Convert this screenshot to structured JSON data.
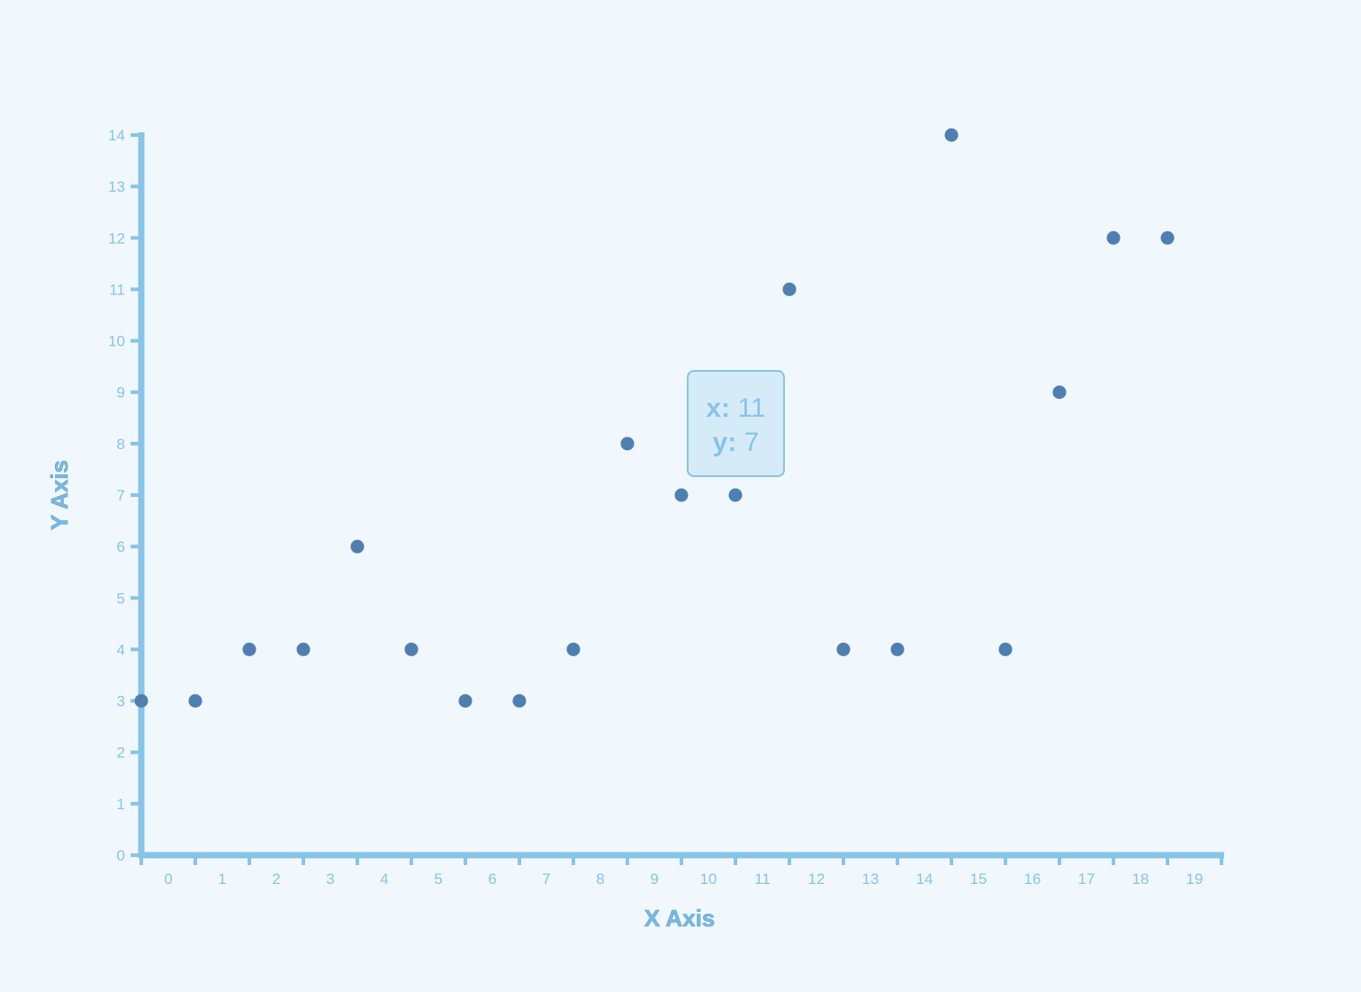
{
  "chart_data": {
    "type": "scatter",
    "title": "",
    "xlabel": "X Axis",
    "ylabel": "Y Axis",
    "xlim": [
      -0.5,
      19.5
    ],
    "ylim": [
      0,
      14
    ],
    "x_ticks": [
      "0",
      "1",
      "2",
      "3",
      "4",
      "5",
      "6",
      "7",
      "8",
      "9",
      "10",
      "11",
      "12",
      "13",
      "14",
      "15",
      "16",
      "17",
      "18",
      "19"
    ],
    "y_ticks": [
      "0",
      "1",
      "2",
      "3",
      "4",
      "5",
      "6",
      "7",
      "8",
      "9",
      "10",
      "11",
      "12",
      "13",
      "14"
    ],
    "grid": false,
    "legend": "none",
    "series": [
      {
        "x": [
          -0.5,
          0.5,
          1.5,
          2.5,
          3.5,
          4.5,
          5.5,
          6.5,
          7.5,
          8.5,
          9.5,
          10.5,
          11.5,
          12.5,
          13.5,
          14.5,
          15.5,
          16.5,
          17.5,
          18.5
        ],
        "y": [
          3,
          3,
          4,
          4,
          6,
          4,
          3,
          3,
          4,
          8,
          7,
          7,
          11,
          4,
          4,
          14,
          4,
          9,
          12,
          12
        ]
      }
    ],
    "colors": {
      "background": "#f0f8fe",
      "axis": "#86c4e8",
      "point": "#4f7fb2",
      "tooltip_bg": "#d6ebf8"
    },
    "tooltip": {
      "x_key": "x:",
      "x_value": "11",
      "y_key": "y:",
      "y_value": "7"
    }
  }
}
